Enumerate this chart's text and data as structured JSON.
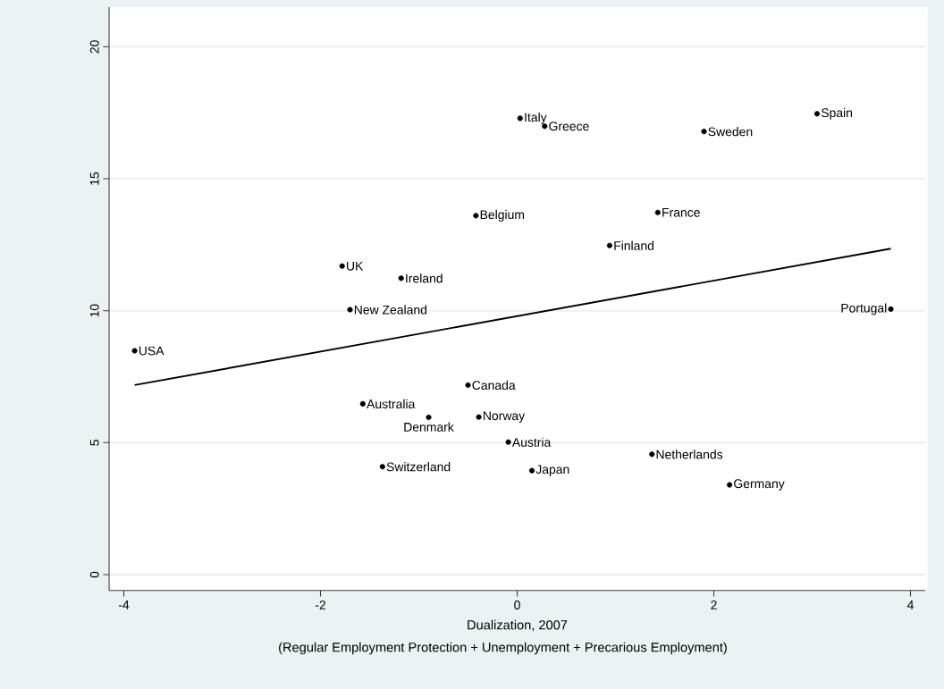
{
  "chart_data": {
    "type": "scatter",
    "xlabel": "Dualization, 2007",
    "annotations": [
      "(Regular Employment Protection + Unemployment + Precarious Employment)"
    ],
    "xlim": [
      -4.15,
      4.15
    ],
    "ylim": [
      -0.6,
      21.5
    ],
    "xticks": [
      -4,
      -2,
      0,
      2,
      4
    ],
    "yticks": [
      0,
      5,
      10,
      15,
      20
    ],
    "grid": "y",
    "series": [
      {
        "color": "#000000",
        "marker": "circle",
        "x": [
          -3.89,
          -1.78,
          -1.7,
          -1.18,
          -0.42,
          0.03,
          0.28,
          1.9,
          3.05,
          1.43,
          0.94,
          3.8,
          -0.5,
          -1.57,
          -0.9,
          -0.39,
          -0.09,
          -1.37,
          0.15,
          1.37,
          2.16
        ],
        "values": [
          8.48,
          11.69,
          10.04,
          11.23,
          13.6,
          17.29,
          16.99,
          16.79,
          17.46,
          13.72,
          12.47,
          10.06,
          7.18,
          6.47,
          5.96,
          5.97,
          5.02,
          4.09,
          3.94,
          4.56,
          3.4
        ],
        "value_labels": [
          "USA",
          "UK",
          "New Zealand",
          "Ireland",
          "Belgium",
          "Italy",
          "Greece",
          "Sweden",
          "Spain",
          "France",
          "Finland",
          "Portugal",
          "Canada",
          "Australia",
          "Denmark",
          "Norway",
          "Austria",
          "Switzerland",
          "Japan",
          "Netherlands",
          "Germany"
        ]
      },
      {
        "type": "line",
        "color": "#000000",
        "marker": "none",
        "line_style": "solid",
        "x": [
          -3.89,
          3.8
        ],
        "values": [
          7.18,
          12.35
        ]
      }
    ]
  }
}
